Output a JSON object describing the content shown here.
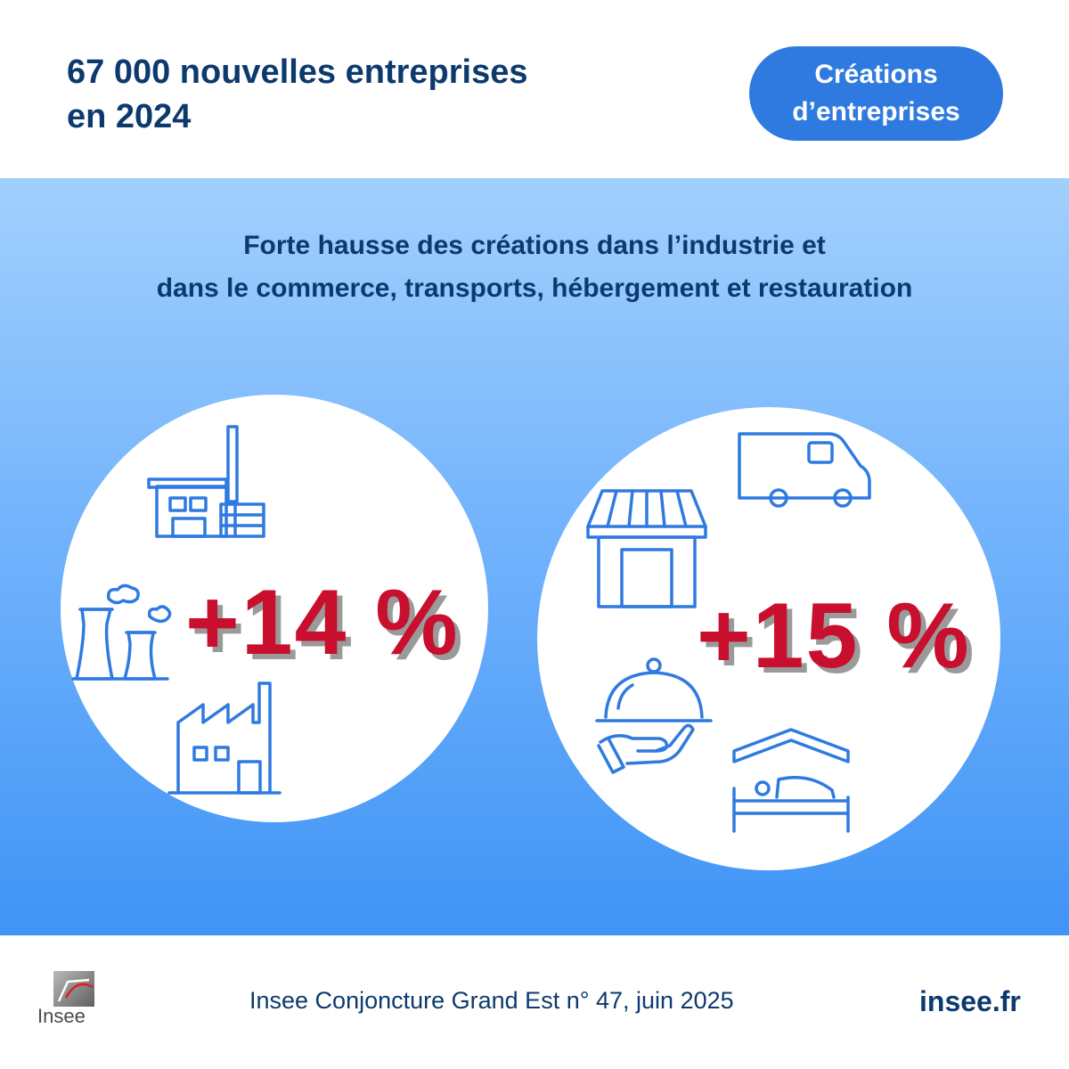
{
  "header": {
    "headline_lines": [
      "67 000 nouvelles entreprises",
      "en 2024"
    ],
    "tag_lines": [
      "Créations",
      "d’entreprises"
    ]
  },
  "main": {
    "subtitle_lines": [
      "Forte hausse des créations dans l’industrie et",
      "dans le commerce, transports, hébergement et restauration"
    ],
    "left": {
      "value": "+14 %",
      "icons": [
        "factory-icon",
        "cooling-tower-icon",
        "plant-icon"
      ]
    },
    "right": {
      "value": "+15 %",
      "icons": [
        "van-icon",
        "shop-icon",
        "cloche-icon",
        "bed-icon"
      ]
    }
  },
  "footer": {
    "logo_text": "Insee",
    "source": "Insee Conjoncture Grand Est n° 47, juin 2025",
    "site": "insee.fr"
  },
  "colors": {
    "navy": "#0d3a6e",
    "accent_blue": "#2f7ae0",
    "highlight_red": "#c8102e"
  }
}
